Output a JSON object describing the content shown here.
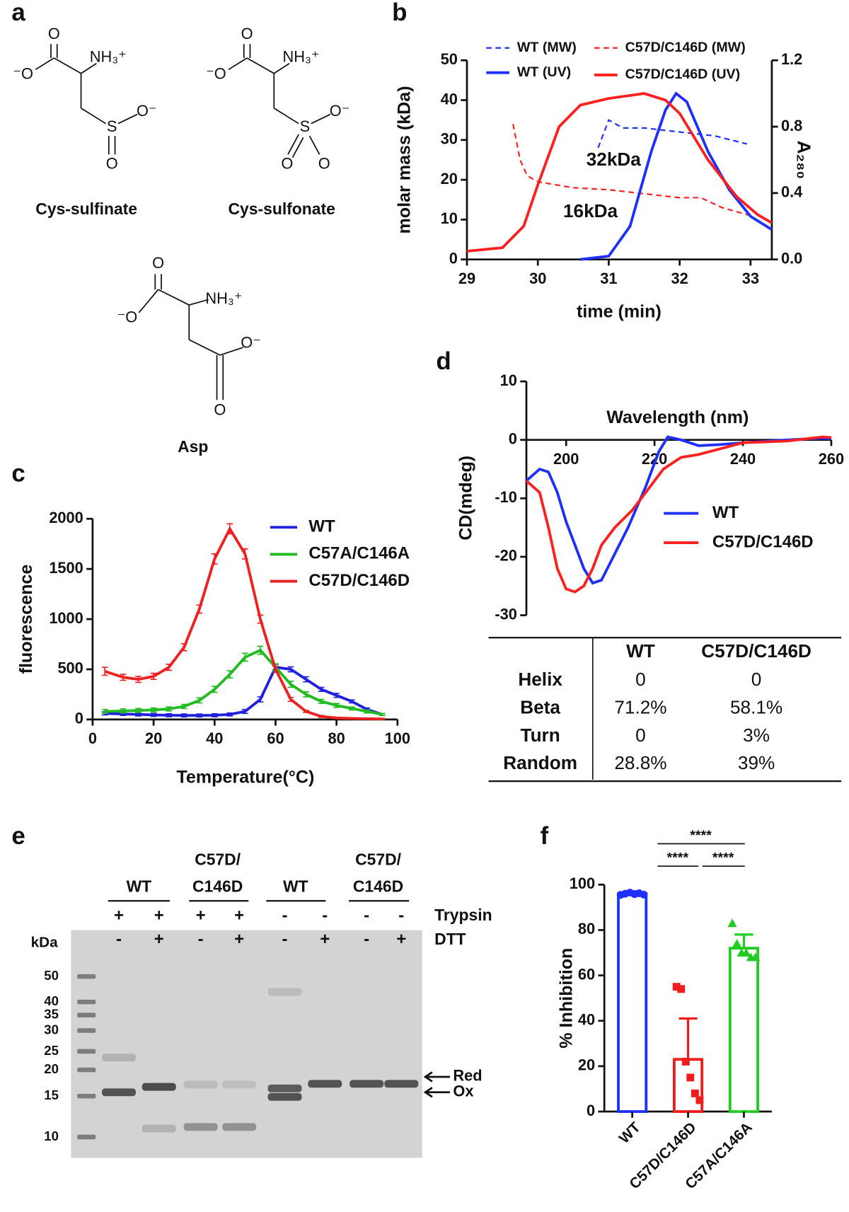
{
  "panel_labels": [
    "a",
    "b",
    "c",
    "d",
    "e",
    "f"
  ],
  "structures": [
    {
      "name": "Cys-sulfinate",
      "atoms": [
        "O",
        "⁻O",
        "NH₃⁺",
        "S",
        "O⁻",
        "O"
      ]
    },
    {
      "name": "Cys-sulfonate",
      "atoms": [
        "O",
        "⁻O",
        "NH₃⁺",
        "S",
        "O⁻",
        "O",
        "O"
      ]
    },
    {
      "name": "Asp",
      "atoms": [
        "O",
        "⁻O",
        "NH₃⁺",
        "O⁻",
        "O"
      ]
    }
  ],
  "chart_data": [
    {
      "type": "line",
      "x_label": "time (min)",
      "y_label": "molar mass (kDa)",
      "y2_label": "A₂₈₀",
      "xlim": [
        29,
        33.3
      ],
      "xticks": [
        29,
        30,
        31,
        32,
        33
      ],
      "ylim": [
        0,
        50
      ],
      "yticks": [
        0,
        10,
        20,
        30,
        40,
        50
      ],
      "y2lim": [
        0,
        1.2
      ],
      "y2ticks": [
        {
          "value": 0,
          "label": "0.0"
        },
        0.4,
        0.8,
        1.2
      ],
      "annotations": [
        "32kDa",
        "16kDa"
      ],
      "series": [
        {
          "name": "WT (MW)",
          "color": "#1f2fff",
          "dash": true,
          "x": [
            30.85,
            31.0,
            31.2,
            31.5,
            32.0,
            32.5,
            32.95
          ],
          "values": [
            28,
            35,
            33,
            33,
            32,
            31,
            29
          ]
        },
        {
          "name": "C57D/C146D (MW)",
          "color": "#ff2020",
          "dash": true,
          "x": [
            29.65,
            29.75,
            29.85,
            30.0,
            30.5,
            31.0,
            31.5,
            32.0,
            32.3,
            32.6,
            33.0
          ],
          "values": [
            34,
            25,
            21,
            19.5,
            18,
            17.5,
            16.5,
            15.5,
            15.5,
            13,
            11
          ]
        },
        {
          "name": "WT (UV)",
          "color": "#1f2fff",
          "axis": "y2",
          "x": [
            30.6,
            31.0,
            31.3,
            31.6,
            31.8,
            31.95,
            32.1,
            32.4,
            32.7,
            33.0,
            33.3
          ],
          "values": [
            0.0,
            0.02,
            0.2,
            0.65,
            0.9,
            1.0,
            0.95,
            0.65,
            0.42,
            0.26,
            0.18
          ]
        },
        {
          "name": "C57D/C146D (UV)",
          "color": "#ff2020",
          "axis": "y2",
          "x": [
            29,
            29.5,
            29.8,
            30.0,
            30.3,
            30.6,
            31.0,
            31.5,
            31.8,
            32.0,
            32.4,
            32.8,
            33.1,
            33.3
          ],
          "values": [
            0.05,
            0.07,
            0.2,
            0.45,
            0.8,
            0.93,
            0.97,
            1.0,
            0.96,
            0.88,
            0.6,
            0.38,
            0.27,
            0.22
          ]
        }
      ]
    },
    {
      "type": "line",
      "error_bars": true,
      "x_label": "Temperature(°C)",
      "y_label": "fluorescence",
      "xlim": [
        0,
        100
      ],
      "xticks": [
        0,
        20,
        40,
        60,
        80,
        100
      ],
      "ylim": [
        0,
        2000
      ],
      "yticks": [
        0,
        500,
        1000,
        1500,
        2000
      ],
      "x": [
        4,
        10,
        15,
        20,
        25,
        30,
        35,
        40,
        45,
        50,
        55,
        60,
        65,
        70,
        75,
        80,
        85,
        90,
        95
      ],
      "series": [
        {
          "name": "WT",
          "color": "#2020dd",
          "values": [
            60,
            55,
            50,
            45,
            42,
            40,
            40,
            42,
            50,
            80,
            200,
            520,
            500,
            400,
            300,
            240,
            180,
            100,
            50
          ],
          "errors": [
            15,
            15,
            15,
            15,
            15,
            15,
            15,
            15,
            15,
            20,
            25,
            30,
            25,
            25,
            20,
            20,
            15,
            15,
            10
          ]
        },
        {
          "name": "C57A/C146A",
          "color": "#22bb22",
          "values": [
            80,
            85,
            90,
            95,
            105,
            130,
            190,
            300,
            450,
            620,
            690,
            520,
            350,
            250,
            180,
            140,
            110,
            80,
            50
          ],
          "errors": [
            20,
            20,
            20,
            20,
            20,
            20,
            25,
            30,
            35,
            40,
            40,
            35,
            30,
            25,
            20,
            20,
            15,
            15,
            10
          ]
        },
        {
          "name": "C57D/C146D",
          "color": "#ee2020",
          "values": [
            480,
            420,
            400,
            430,
            520,
            720,
            1100,
            1600,
            1900,
            1650,
            1000,
            500,
            200,
            80,
            30,
            15,
            10,
            8,
            5
          ],
          "errors": [
            40,
            30,
            30,
            30,
            30,
            35,
            40,
            50,
            50,
            50,
            40,
            30,
            20,
            10,
            10,
            5,
            5,
            5,
            5
          ]
        }
      ]
    },
    {
      "type": "line",
      "x_label": "Wavelength (nm)",
      "y_label": "CD(mdeg)",
      "xlim": [
        191,
        260
      ],
      "xticks": [
        200,
        220,
        240,
        260
      ],
      "ylim": [
        -30,
        10
      ],
      "yticks": [
        -30,
        -20,
        -10,
        0,
        10
      ],
      "series": [
        {
          "name": "WT",
          "color": "#1f2fff",
          "x": [
            191,
            194,
            196,
            198,
            200,
            202,
            204,
            206,
            208,
            210,
            214,
            218,
            221,
            223,
            226,
            230,
            235,
            240,
            250,
            258,
            260
          ],
          "values": [
            -7,
            -5,
            -5.5,
            -9,
            -14,
            -18,
            -22,
            -24.5,
            -24,
            -21,
            -15,
            -8,
            -2,
            0.5,
            0,
            -1,
            -0.8,
            -0.5,
            0,
            0.3,
            0.2
          ]
        },
        {
          "name": "C57D/C146D",
          "color": "#ff2020",
          "x": [
            191,
            194,
            196,
            198,
            200,
            202,
            204,
            206,
            208,
            211,
            215,
            219,
            222,
            226,
            230,
            235,
            240,
            250,
            258,
            260
          ],
          "values": [
            -7,
            -9,
            -15,
            -22,
            -25.5,
            -26,
            -25,
            -22,
            -18,
            -15,
            -12,
            -8,
            -5,
            -3,
            -2.5,
            -1.5,
            -0.5,
            -0.2,
            0.5,
            0.4
          ]
        }
      ]
    },
    {
      "type": "bar",
      "y_label": "% Inhibition",
      "categories": [
        "WT",
        "C57D/C146D",
        "C57A/C146A"
      ],
      "values": [
        96,
        23,
        72
      ],
      "errors": [
        1,
        18,
        6
      ],
      "points": [
        [
          95.5,
          96,
          96.5,
          95.8,
          96.2,
          95.6
        ],
        [
          55,
          54,
          22,
          15,
          8,
          5
        ],
        [
          83,
          74,
          70,
          70,
          68,
          68
        ]
      ],
      "colors": [
        "#1f2fff",
        "#ee1c1c",
        "#22cc22"
      ],
      "markers": [
        "circle",
        "square",
        "triangle"
      ],
      "ylim": [
        0,
        100
      ],
      "yticks": [
        0,
        20,
        40,
        60,
        80,
        100
      ],
      "significance": [
        "****",
        "****",
        "****"
      ]
    }
  ],
  "table": {
    "header": [
      "WT",
      "C57D/C146D"
    ],
    "rows": [
      [
        "Helix",
        "0",
        "0"
      ],
      [
        "Beta",
        "71.2%",
        "58.1%"
      ],
      [
        "Turn",
        "0",
        "3%"
      ],
      [
        "Random",
        "28.8%",
        "39%"
      ]
    ]
  },
  "gel": {
    "groups": [
      [
        "WT"
      ],
      [
        "C57D/",
        "C146D"
      ],
      [
        "WT"
      ],
      [
        "C57D/",
        "C146D"
      ]
    ],
    "row_labels": [
      "Trypsin",
      "DTT"
    ],
    "trypsin": [
      "+",
      "+",
      "+",
      "+",
      "-",
      "-",
      "-",
      "-"
    ],
    "dtt": [
      "-",
      "+",
      "-",
      "+",
      "-",
      "+",
      "-",
      "+"
    ],
    "unit": "kDa",
    "markers": [
      50,
      40,
      35,
      30,
      25,
      20,
      15,
      10
    ],
    "bands": [
      "Red",
      "Ox"
    ]
  }
}
